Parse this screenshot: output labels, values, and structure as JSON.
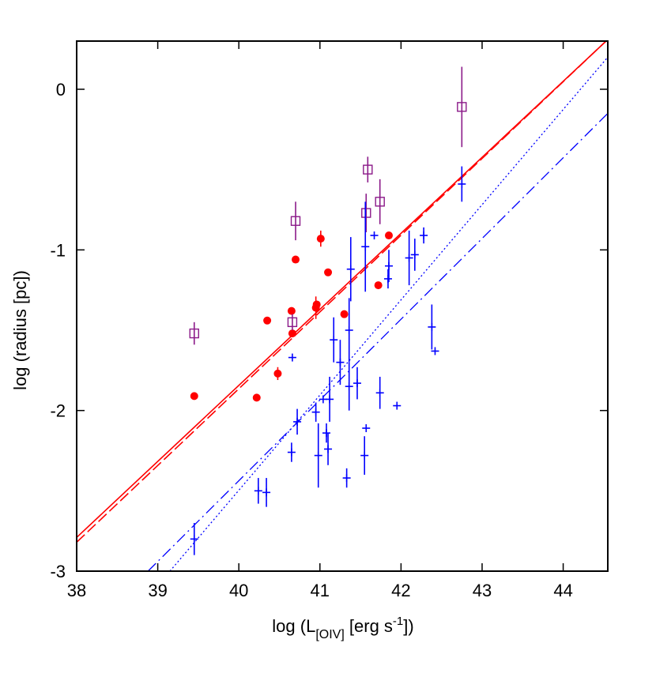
{
  "chart_data": {
    "type": "scatter",
    "title": "",
    "xlabel": {
      "pre": "log (L",
      "sub": "[OIV]",
      "mid": " [erg s",
      "sup": "-1",
      "post": "])"
    },
    "ylabel": "log (radius [pc])",
    "xlim": [
      38,
      44.55
    ],
    "ylim": [
      -3,
      0.3
    ],
    "x_ticks": [
      38,
      39,
      40,
      41,
      42,
      43,
      44
    ],
    "x_tick_labels": [
      "38",
      "39",
      "40",
      "41",
      "42",
      "43",
      "44"
    ],
    "y_ticks": [
      -3,
      -2,
      -1,
      0
    ],
    "y_tick_labels": [
      "-3",
      "-2",
      "-1",
      "0"
    ],
    "grid": false,
    "series": [
      {
        "marker": "filled-circle",
        "color": "#ff0000",
        "points": [
          {
            "x": 39.45,
            "y": -1.91
          },
          {
            "x": 40.22,
            "y": -1.92
          },
          {
            "x": 40.35,
            "y": -1.44
          },
          {
            "x": 40.48,
            "y": -1.77,
            "yerr": 0.04
          },
          {
            "x": 40.65,
            "y": -1.38
          },
          {
            "x": 40.66,
            "y": -1.52
          },
          {
            "x": 40.7,
            "y": -1.06
          },
          {
            "x": 40.95,
            "y": -1.36,
            "yerr": 0.07
          },
          {
            "x": 40.96,
            "y": -1.34
          },
          {
            "x": 41.01,
            "y": -0.93,
            "yerr": 0.05
          },
          {
            "x": 41.1,
            "y": -1.14
          },
          {
            "x": 41.3,
            "y": -1.4
          },
          {
            "x": 41.72,
            "y": -1.22
          },
          {
            "x": 41.85,
            "y": -0.91
          }
        ]
      },
      {
        "marker": "open-square",
        "color": "#8b1a89",
        "points": [
          {
            "x": 39.45,
            "y": -1.52,
            "yerr": 0.07
          },
          {
            "x": 40.66,
            "y": -1.45,
            "yerr": 0.05
          },
          {
            "x": 40.7,
            "y": -0.82,
            "yerr": 0.12
          },
          {
            "x": 41.57,
            "y": -0.77,
            "yerr": 0.12
          },
          {
            "x": 41.59,
            "y": -0.5,
            "yerr": 0.08
          },
          {
            "x": 41.74,
            "y": -0.7,
            "yerr": 0.14
          },
          {
            "x": 42.75,
            "y": -0.11,
            "yerr": 0.25
          }
        ]
      },
      {
        "marker": "plus",
        "color": "#0000ff",
        "points": [
          {
            "x": 39.45,
            "y": -2.8,
            "yerr": 0.1
          },
          {
            "x": 40.24,
            "y": -2.5,
            "yerr": 0.08
          },
          {
            "x": 40.34,
            "y": -2.51,
            "yerr": 0.09
          },
          {
            "x": 40.65,
            "y": -2.26,
            "yerr": 0.06
          },
          {
            "x": 40.66,
            "y": -1.67
          },
          {
            "x": 40.72,
            "y": -2.07,
            "yerr": 0.08
          },
          {
            "x": 40.95,
            "y": -2.01,
            "yerr": 0.06
          },
          {
            "x": 40.98,
            "y": -2.28,
            "yerr": 0.2
          },
          {
            "x": 41.04,
            "y": -1.93
          },
          {
            "x": 41.08,
            "y": -2.14,
            "yerr": 0.06
          },
          {
            "x": 41.1,
            "y": -2.24,
            "yerr": 0.1
          },
          {
            "x": 41.12,
            "y": -1.93,
            "yerr": 0.14
          },
          {
            "x": 41.17,
            "y": -1.56,
            "yerr": 0.14
          },
          {
            "x": 41.25,
            "y": -1.7,
            "yerr": 0.14
          },
          {
            "x": 41.33,
            "y": -2.42,
            "yerr": 0.06
          },
          {
            "x": 41.36,
            "y": -1.5,
            "yerr": 0.2
          },
          {
            "x": 41.36,
            "y": -1.85,
            "yerr": 0.15
          },
          {
            "x": 41.38,
            "y": -1.12,
            "yerr": 0.2
          },
          {
            "x": 41.46,
            "y": -1.83,
            "yerr": 0.1
          },
          {
            "x": 41.55,
            "y": -2.28,
            "yerr": 0.12
          },
          {
            "x": 41.56,
            "y": -0.98,
            "yerr": 0.28
          },
          {
            "x": 41.57,
            "y": -2.11
          },
          {
            "x": 41.67,
            "y": -0.91
          },
          {
            "x": 41.74,
            "y": -1.89,
            "yerr": 0.1
          },
          {
            "x": 41.84,
            "y": -1.18,
            "yerr": 0.06
          },
          {
            "x": 41.85,
            "y": -1.1,
            "yerr": 0.1
          },
          {
            "x": 41.95,
            "y": -1.97
          },
          {
            "x": 42.1,
            "y": -1.05,
            "yerr": 0.17
          },
          {
            "x": 42.17,
            "y": -1.03,
            "yerr": 0.1
          },
          {
            "x": 42.28,
            "y": -0.91,
            "yerr": 0.05
          },
          {
            "x": 42.38,
            "y": -1.48,
            "yerr": 0.14
          },
          {
            "x": 42.42,
            "y": -1.63
          },
          {
            "x": 42.75,
            "y": -0.59,
            "yerr": 0.11
          }
        ]
      }
    ],
    "fit_lines": [
      {
        "style": "solid",
        "color": "#ff0000",
        "from": [
          38,
          -2.79
        ],
        "to": [
          44.55,
          0.31
        ]
      },
      {
        "style": "dashed",
        "color": "#ff0000",
        "from": [
          38,
          -2.82
        ],
        "to": [
          44.55,
          0.31
        ]
      },
      {
        "style": "dotted",
        "color": "#0000ff",
        "from": [
          39.15,
          -3
        ],
        "to": [
          44.55,
          0.2
        ]
      },
      {
        "style": "dash-dot",
        "color": "#0000ff",
        "from": [
          38.88,
          -3
        ],
        "to": [
          44.55,
          -0.15
        ]
      }
    ]
  }
}
